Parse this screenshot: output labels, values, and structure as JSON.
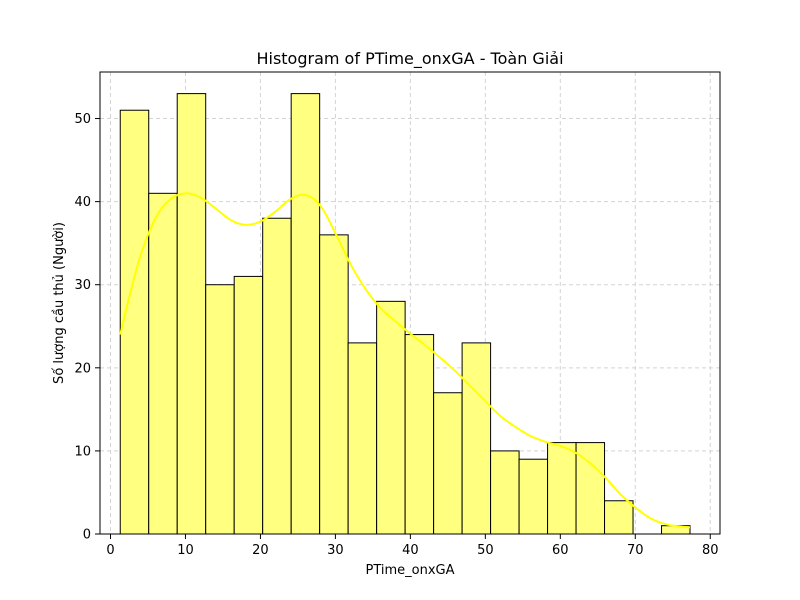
{
  "chart_data": {
    "type": "bar",
    "subtype": "histogram-with-kde",
    "title": "Histogram of PTime_onxGA - Toàn Giải",
    "xlabel": "PTime_onxGA",
    "ylabel": "Số lượng cầu thủ (Người)",
    "xlim": [
      -1.4,
      81.3
    ],
    "ylim": [
      0,
      55.6
    ],
    "xticks": [
      0,
      10,
      20,
      30,
      40,
      50,
      60,
      70,
      80
    ],
    "yticks": [
      0,
      10,
      20,
      30,
      40,
      50
    ],
    "grid": true,
    "grid_style": "dashed",
    "bar_color": "#ffff80",
    "bar_edge_color": "#000000",
    "line_color": "#ffff00",
    "bins": [
      {
        "x0": 1.3,
        "x1": 5.1,
        "count": 51
      },
      {
        "x0": 5.1,
        "x1": 8.9,
        "count": 41
      },
      {
        "x0": 8.9,
        "x1": 12.7,
        "count": 53
      },
      {
        "x0": 12.7,
        "x1": 16.5,
        "count": 30
      },
      {
        "x0": 16.5,
        "x1": 20.3,
        "count": 31
      },
      {
        "x0": 20.3,
        "x1": 24.1,
        "count": 38
      },
      {
        "x0": 24.1,
        "x1": 27.9,
        "count": 53
      },
      {
        "x0": 27.9,
        "x1": 31.7,
        "count": 36
      },
      {
        "x0": 31.7,
        "x1": 35.5,
        "count": 23
      },
      {
        "x0": 35.5,
        "x1": 39.3,
        "count": 28
      },
      {
        "x0": 39.3,
        "x1": 43.1,
        "count": 24
      },
      {
        "x0": 43.1,
        "x1": 46.9,
        "count": 17
      },
      {
        "x0": 46.9,
        "x1": 50.7,
        "count": 23
      },
      {
        "x0": 50.7,
        "x1": 54.5,
        "count": 10
      },
      {
        "x0": 54.5,
        "x1": 58.3,
        "count": 9
      },
      {
        "x0": 58.3,
        "x1": 62.1,
        "count": 11
      },
      {
        "x0": 62.1,
        "x1": 65.9,
        "count": 11
      },
      {
        "x0": 65.9,
        "x1": 69.7,
        "count": 4
      },
      {
        "x0": 69.7,
        "x1": 73.5,
        "count": 0
      },
      {
        "x0": 73.5,
        "x1": 77.3,
        "count": 1
      }
    ],
    "kde": {
      "x": [
        1.3,
        2.5,
        4,
        6,
        8,
        10,
        12,
        14,
        16,
        18,
        20,
        22,
        24,
        26,
        28,
        30,
        32,
        34,
        36,
        38,
        40,
        42,
        44,
        46,
        48,
        50,
        52,
        54,
        56,
        58,
        60,
        62,
        64,
        66,
        68,
        70,
        72,
        74,
        76,
        77.3
      ],
      "y": [
        24,
        28.5,
        33.5,
        38,
        40.3,
        41,
        40.5,
        39.2,
        37.8,
        37.2,
        37.6,
        38.8,
        40.3,
        40.8,
        39.5,
        36.2,
        32.5,
        29.5,
        27.2,
        25.6,
        24.1,
        22.7,
        21.2,
        19.6,
        17.8,
        16,
        14.2,
        12.9,
        11.8,
        11.1,
        10.6,
        9.8,
        8.5,
        6.8,
        4.8,
        3.2,
        1.9,
        1.2,
        0.9,
        0.8
      ]
    }
  }
}
